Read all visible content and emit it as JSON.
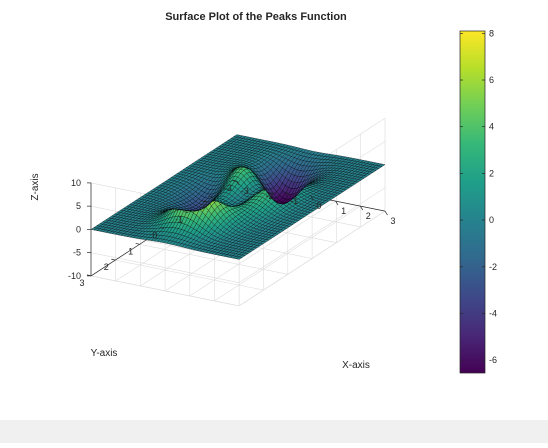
{
  "chart_data": {
    "type": "surface",
    "title": "Surface Plot of the Peaks Function",
    "xlabel": "X-axis",
    "ylabel": "Y-axis",
    "zlabel": "Z-axis",
    "function": "peaks",
    "xlim": [
      -3,
      3
    ],
    "ylim": [
      -3,
      3
    ],
    "zlim": [
      -10,
      10
    ],
    "x_ticks": [
      "-3",
      "-2",
      "-1",
      "0",
      "1",
      "2",
      "3"
    ],
    "y_ticks": [
      "-3",
      "-2",
      "-1",
      "0",
      "1",
      "2",
      "3"
    ],
    "z_ticks": [
      "-10",
      "-5",
      "0",
      "5",
      "10"
    ],
    "grid": true,
    "mesh_size": 50,
    "colormap": "viridis",
    "colormap_stops": [
      "#440154",
      "#482878",
      "#3e4989",
      "#31688e",
      "#26828e",
      "#1f9e89",
      "#35b779",
      "#6ece58",
      "#b5de2b",
      "#fde725"
    ],
    "colorbar": {
      "limits": [
        -6.55,
        8.1
      ],
      "ticks": [
        "-6",
        "-4",
        "-2",
        "0",
        "2",
        "4",
        "6",
        "8"
      ],
      "location": "right"
    },
    "edge_color": "#000000"
  }
}
